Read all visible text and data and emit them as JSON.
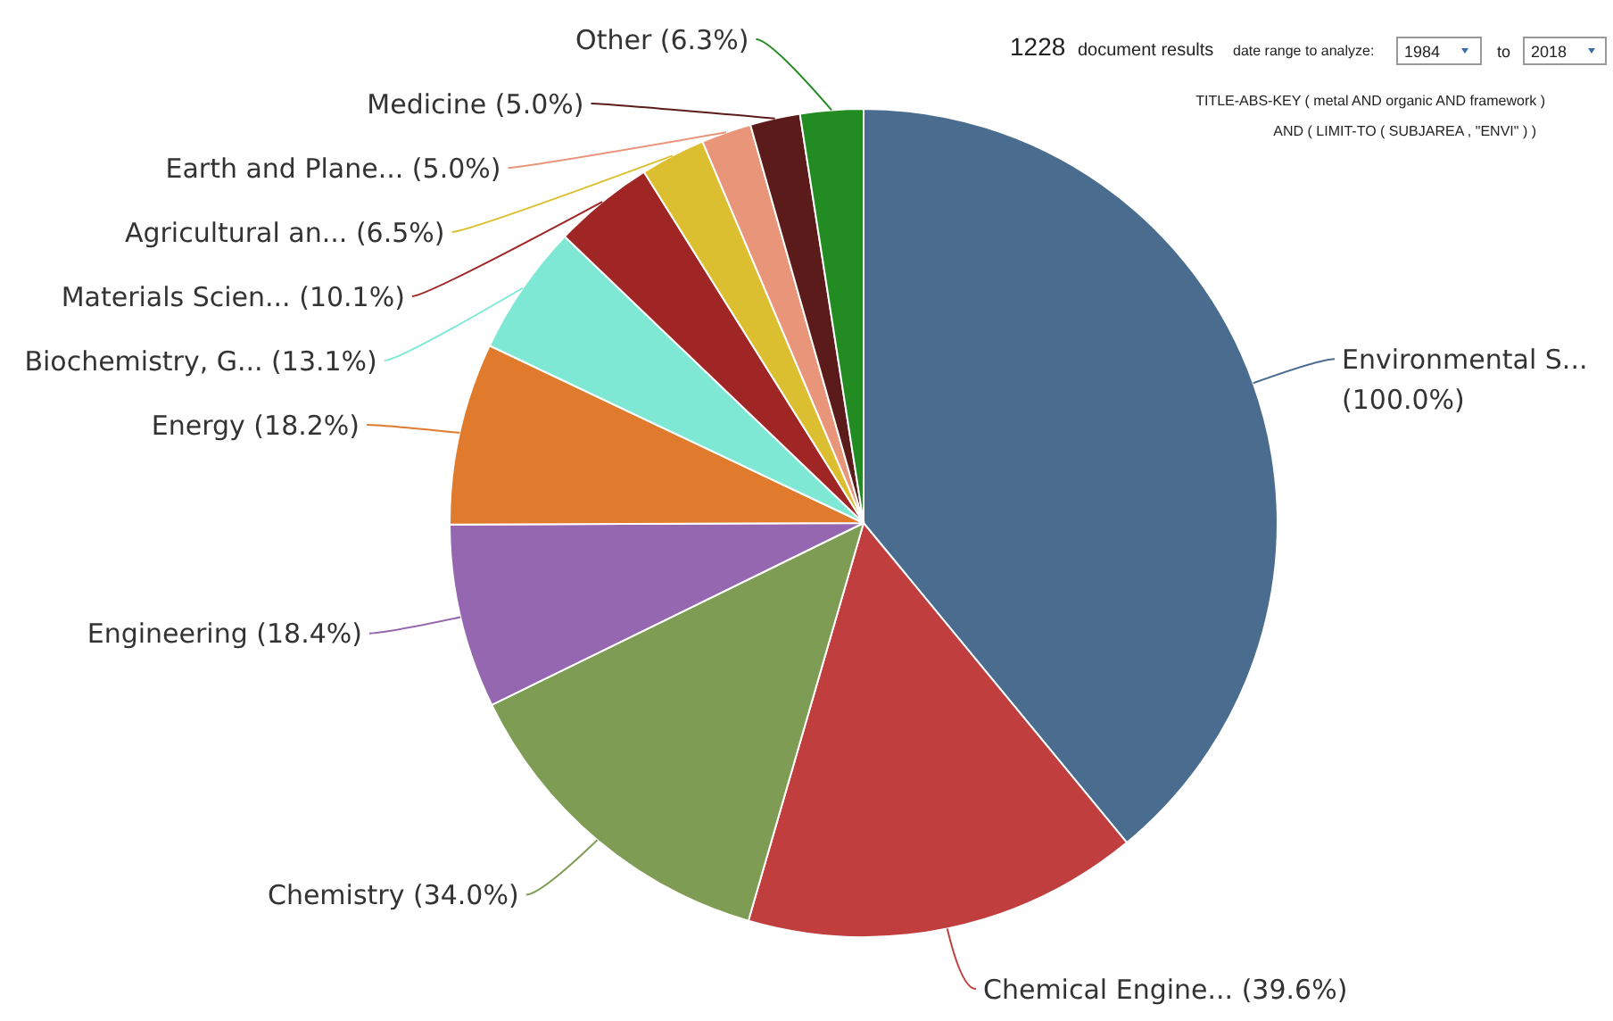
{
  "chart_data": {
    "type": "pie",
    "categories": [
      "Environmental S...",
      "Chemical Engine...",
      "Chemistry",
      "Engineering",
      "Energy",
      "Biochemistry, G...",
      "Materials Scien...",
      "Agricultural an...",
      "Earth and Plane...",
      "Medicine",
      "Other"
    ],
    "values": [
      100.0,
      39.6,
      34.0,
      18.4,
      18.2,
      13.1,
      10.1,
      6.5,
      5.0,
      5.0,
      6.3
    ],
    "value_labels": [
      "(100.0%)",
      "(39.6%)",
      "(34.0%)",
      "(18.4%)",
      "(18.2%)",
      "(13.1%)",
      "(10.1%)",
      "(6.5%)",
      "(5.0%)",
      "(5.0%)",
      "(6.3%)"
    ],
    "colors": [
      "#4a6d8f",
      "#c03f3e",
      "#7f9c54",
      "#9667b1",
      "#e07b2e",
      "#7ee8d4",
      "#a02525",
      "#dcbf30",
      "#e9957a",
      "#5c1b1b",
      "#228b22"
    ],
    "annotations": [
      "1228",
      "document results",
      "date range to analyze:",
      "1984",
      "to",
      "2018",
      "TITLE-ABS-KEY ( metal  AND organic  AND framework )",
      "AND  ( LIMIT-TO ( SUBJAREA ,  \"ENVI\" ) )"
    ]
  }
}
